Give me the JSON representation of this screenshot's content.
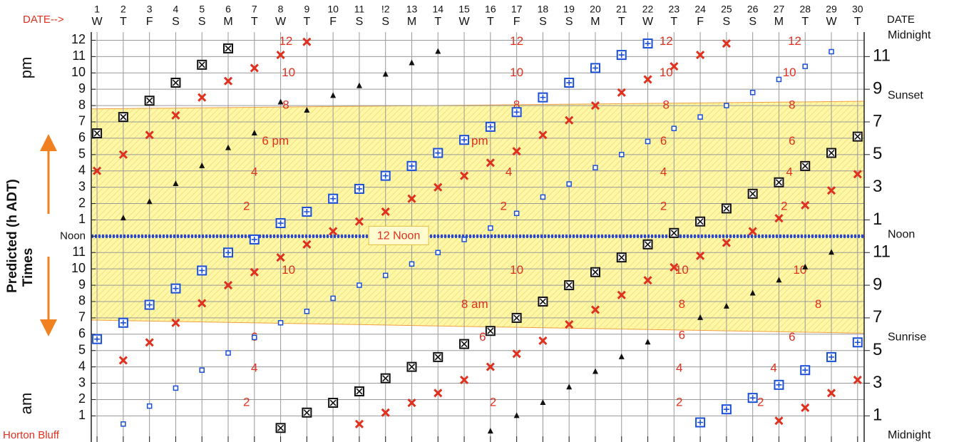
{
  "chart_data": {
    "type": "scatter",
    "header_left": "DATE-->",
    "header_right": "DATE",
    "location": "Horton Bluff",
    "label_pm": "pm",
    "label_am": "am",
    "axis_title_lines": [
      "Predicted (h  ADT)",
      "Times"
    ],
    "right_labels": [
      {
        "text": "Midnight",
        "y": 24.3
      },
      {
        "text": "Sunset",
        "y": 20.6
      },
      {
        "text": "Noon",
        "y": 12.1
      },
      {
        "text": "Sunrise",
        "y": 5.8
      },
      {
        "text": "Midnight",
        "y": -0.2
      }
    ],
    "noon_label": "12 Noon",
    "categories": [
      "1",
      "2",
      "3",
      "4",
      "5",
      "6",
      "7",
      "8",
      "9",
      "10",
      "11",
      "!2",
      "13",
      "14",
      "15",
      "16",
      "17",
      "18",
      "19",
      "20",
      "21",
      "22",
      "23",
      "24",
      "25",
      "26",
      "27",
      "28",
      "29",
      "30"
    ],
    "weekdays": [
      "W",
      "T",
      "F",
      "S",
      "S",
      "M",
      "T",
      "W",
      "T",
      "F",
      "S",
      "S",
      "M",
      "T",
      "W",
      "T",
      "F",
      "S",
      "S",
      "M",
      "T",
      "W",
      "T",
      "F",
      "S",
      "S",
      "M",
      "T",
      "W",
      "T"
    ],
    "xlim": [
      0.78,
      30.25
    ],
    "ylim": [
      -0.6,
      24.5
    ],
    "yticks": [
      1,
      2,
      3,
      4,
      5,
      6,
      7,
      8,
      9,
      10,
      11,
      {
        "value": 12,
        "label": "Noon"
      },
      {
        "value": 13,
        "label": "1"
      },
      {
        "value": 14,
        "label": "2"
      },
      {
        "value": 15,
        "label": "3"
      },
      {
        "value": 16,
        "label": "4"
      },
      {
        "value": 17,
        "label": "5"
      },
      {
        "value": 18,
        "label": "6"
      },
      {
        "value": 19,
        "label": "7"
      },
      {
        "value": 20,
        "label": "8"
      },
      {
        "value": 21,
        "label": "9"
      },
      {
        "value": 22,
        "label": "10"
      },
      {
        "value": 23,
        "label": "11"
      },
      {
        "value": 24,
        "label": "12"
      }
    ],
    "y2ticks": [
      1,
      3,
      5,
      7,
      9,
      11,
      {
        "value": 13,
        "label": "1"
      },
      {
        "value": 15,
        "label": "3"
      },
      {
        "value": 17,
        "label": "5"
      },
      {
        "value": 19,
        "label": "7"
      },
      {
        "value": 21,
        "label": "9"
      },
      {
        "value": 23,
        "label": "11"
      }
    ],
    "grid": true,
    "daylight": {
      "x": [
        1,
        30
      ],
      "sunrise": [
        6.86,
        6.07
      ],
      "sunset": [
        19.8,
        20.26
      ],
      "color": "#fff7a8",
      "edge": "#f0a040"
    },
    "noon_line": {
      "value": 12,
      "color": "#2a48d0"
    },
    "series": [
      {
        "marker": "boxx",
        "color": "#111111",
        "values": [
          18.3,
          19.3,
          20.3,
          21.4,
          22.5,
          23.5,
          null,
          0.26,
          1.2,
          1.8,
          2.5,
          3.3,
          4.0,
          4.6,
          5.4,
          6.2,
          7.0,
          8.0,
          9.0,
          9.8,
          10.7,
          11.5,
          12.2,
          12.9,
          13.7,
          14.6,
          15.3,
          16.3,
          17.1,
          18.1
        ]
      },
      {
        "marker": "boxplus",
        "color": "#1a4fd6",
        "values": [
          5.7,
          6.7,
          7.8,
          8.8,
          9.9,
          11.0,
          11.8,
          12.8,
          13.5,
          14.3,
          14.9,
          15.7,
          16.3,
          17.1,
          17.9,
          18.7,
          19.6,
          20.5,
          21.4,
          22.3,
          23.1,
          23.8,
          null,
          0.6,
          1.4,
          2.1,
          2.9,
          3.8,
          4.6,
          5.5
        ]
      },
      {
        "marker": "x",
        "color": "#e0301e",
        "values": [
          16.0,
          17.0,
          18.2,
          19.4,
          20.5,
          21.5,
          22.3,
          23.1,
          23.9,
          null,
          0.5,
          1.2,
          1.8,
          2.4,
          3.2,
          4.0,
          4.8,
          5.6,
          6.6,
          7.5,
          8.4,
          9.3,
          10.1,
          10.8,
          11.6,
          12.3,
          13.1,
          13.9,
          14.8,
          15.8
        ]
      },
      {
        "marker": "x",
        "color": "#e0301e",
        "values": [
          null,
          4.4,
          5.5,
          6.7,
          7.9,
          9.0,
          9.8,
          10.7,
          11.5,
          12.3,
          12.9,
          13.5,
          14.3,
          15.0,
          15.7,
          16.5,
          17.2,
          18.2,
          19.1,
          20.0,
          20.8,
          21.6,
          22.4,
          23.1,
          23.8,
          null,
          0.7,
          1.5,
          2.4,
          3.2
        ]
      },
      {
        "marker": "triangle",
        "color": "#111111",
        "values": [
          null,
          13.1,
          14.1,
          15.2,
          16.3,
          17.4,
          18.3,
          20.2,
          19.7,
          20.6,
          21.2,
          21.9,
          22.6,
          23.3,
          null,
          0.05,
          1.0,
          1.8,
          2.75,
          3.7,
          4.6,
          5.5,
          null,
          7.0,
          7.7,
          8.5,
          9.3,
          10.1,
          11.0,
          null
        ]
      },
      {
        "marker": "square",
        "color": "#1a4fd6",
        "values": [
          null,
          0.5,
          1.6,
          2.7,
          3.8,
          4.85,
          5.8,
          6.7,
          7.4,
          8.2,
          9.0,
          9.6,
          10.3,
          11.0,
          11.8,
          12.5,
          13.4,
          14.4,
          15.2,
          16.2,
          17.0,
          17.8,
          18.6,
          19.3,
          20.0,
          20.8,
          21.6,
          22.4,
          23.3,
          null
        ]
      }
    ],
    "annotation_color": "#e0301e",
    "annotations": [
      {
        "text": "12",
        "x": 8.2,
        "y": 23.9
      },
      {
        "text": "10",
        "x": 8.3,
        "y": 22.0
      },
      {
        "text": "8",
        "x": 8.2,
        "y": 20.0
      },
      {
        "text": "6 pm",
        "x": 7.8,
        "y": 17.8
      },
      {
        "text": "4",
        "x": 7.0,
        "y": 15.9
      },
      {
        "text": "2",
        "x": 6.7,
        "y": 13.8
      },
      {
        "text": "10",
        "x": 8.3,
        "y": 9.9
      },
      {
        "text": "6",
        "x": 7.0,
        "y": 5.8
      },
      {
        "text": "4",
        "x": 7.0,
        "y": 3.9
      },
      {
        "text": "2",
        "x": 6.7,
        "y": 1.8
      },
      {
        "text": "12",
        "x": 17.0,
        "y": 23.9
      },
      {
        "text": "10",
        "x": 17.0,
        "y": 22.0
      },
      {
        "text": "8",
        "x": 17.0,
        "y": 20.0
      },
      {
        "text": "6 pm",
        "x": 15.4,
        "y": 17.8
      },
      {
        "text": "4",
        "x": 16.7,
        "y": 15.9
      },
      {
        "text": "2",
        "x": 16.5,
        "y": 13.8
      },
      {
        "text": "10",
        "x": 17.0,
        "y": 9.9
      },
      {
        "text": "8 am",
        "x": 15.4,
        "y": 7.8
      },
      {
        "text": "6",
        "x": 15.7,
        "y": 5.8
      },
      {
        "text": "2",
        "x": 16.1,
        "y": 1.8
      },
      {
        "text": "12",
        "x": 22.7,
        "y": 23.9
      },
      {
        "text": "10",
        "x": 22.7,
        "y": 22.0
      },
      {
        "text": "8",
        "x": 22.7,
        "y": 20.0
      },
      {
        "text": "6",
        "x": 22.6,
        "y": 17.8
      },
      {
        "text": "4",
        "x": 22.6,
        "y": 15.9
      },
      {
        "text": "2",
        "x": 22.6,
        "y": 13.8
      },
      {
        "text": "10",
        "x": 23.3,
        "y": 9.9
      },
      {
        "text": "8",
        "x": 23.3,
        "y": 7.8
      },
      {
        "text": "6",
        "x": 23.3,
        "y": 5.9
      },
      {
        "text": "4",
        "x": 23.2,
        "y": 3.9
      },
      {
        "text": "2",
        "x": 23.2,
        "y": 1.8
      },
      {
        "text": "12",
        "x": 27.6,
        "y": 23.9
      },
      {
        "text": "10",
        "x": 27.4,
        "y": 22.0
      },
      {
        "text": "8",
        "x": 27.5,
        "y": 20.0
      },
      {
        "text": "6",
        "x": 27.5,
        "y": 17.8
      },
      {
        "text": "4",
        "x": 27.4,
        "y": 15.9
      },
      {
        "text": "2",
        "x": 27.2,
        "y": 13.8
      },
      {
        "text": "10",
        "x": 27.8,
        "y": 9.9
      },
      {
        "text": "8",
        "x": 28.5,
        "y": 7.8
      },
      {
        "text": "6",
        "x": 27.5,
        "y": 5.8
      },
      {
        "text": "4",
        "x": 26.8,
        "y": 3.9
      },
      {
        "text": "2",
        "x": 26.3,
        "y": 1.8
      }
    ]
  }
}
